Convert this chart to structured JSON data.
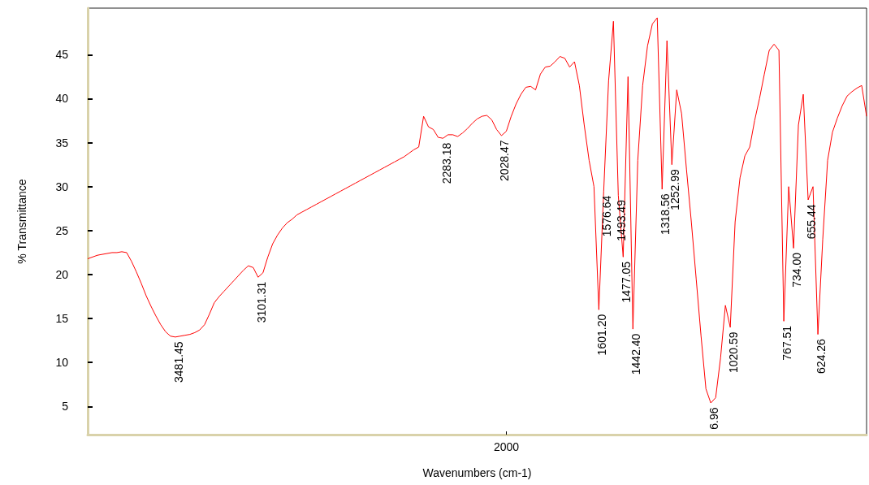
{
  "chart_data": {
    "type": "line",
    "xlabel": "Wavenumbers (cm-1)",
    "ylabel": "% Transmittance",
    "categories": [
      null,
      null,
      null,
      null,
      null,
      null,
      null,
      null,
      null,
      null,
      null,
      null,
      null,
      null,
      null,
      null,
      null,
      null,
      null,
      null,
      null,
      null,
      null,
      null,
      null,
      null,
      null,
      null,
      null,
      null,
      null,
      null,
      null,
      null,
      null,
      null,
      null,
      null,
      null,
      null,
      null,
      null,
      null,
      null,
      null,
      null,
      null,
      null,
      null,
      null,
      null,
      null,
      null,
      null,
      null,
      null,
      null,
      null,
      null,
      null,
      null,
      null,
      null,
      null,
      null,
      null,
      null,
      null,
      null,
      null,
      null,
      null,
      null,
      null,
      null,
      null,
      null,
      null,
      null,
      null,
      null,
      null,
      null,
      null,
      null,
      null,
      "2000",
      null,
      null,
      null,
      null,
      null,
      null,
      null,
      null,
      null,
      null,
      null,
      null,
      null,
      null,
      null,
      null,
      null,
      null,
      null,
      null,
      null,
      null,
      null,
      null,
      null,
      null,
      null,
      null,
      null,
      null,
      null,
      null,
      null,
      null,
      null,
      null,
      null,
      null,
      null,
      null,
      null,
      null,
      null,
      null,
      null,
      null,
      null,
      null,
      null,
      null,
      null,
      null,
      null,
      null,
      null,
      null,
      null,
      null,
      null,
      null,
      null,
      null,
      null,
      null,
      null,
      null,
      null,
      null,
      null,
      null,
      null,
      null,
      null,
      null
    ],
    "ylim": [
      1.8,
      50.3
    ],
    "yticks": [
      5,
      10,
      15,
      20,
      25,
      30,
      35,
      40,
      45
    ],
    "grid": false,
    "marker": "none",
    "line_style": "solid",
    "series": [
      {
        "color": "#ff0000",
        "values": [
          21.8,
          22.0,
          22.2,
          22.3,
          22.4,
          22.5,
          22.5,
          22.6,
          22.5,
          21.5,
          20.3,
          19,
          17.6,
          16.4,
          15.3,
          14.3,
          13.5,
          13.0,
          12.9,
          13.0,
          13.1,
          13.2,
          13.4,
          13.7,
          14.3,
          15.5,
          16.8,
          17.5,
          18.1,
          18.7,
          19.3,
          19.9,
          20.5,
          21.0,
          20.8,
          19.7,
          20.2,
          22,
          23.5,
          24.5,
          25.3,
          25.9,
          26.3,
          26.8,
          27.1,
          27.4,
          27.7,
          28.0,
          28.3,
          28.6,
          28.9,
          29.2,
          29.5,
          29.8,
          30.1,
          30.4,
          30.7,
          31.0,
          31.3,
          31.6,
          31.9,
          32.2,
          32.5,
          32.8,
          33.1,
          33.4,
          33.8,
          34.2,
          34.5,
          38,
          36.8,
          36.5,
          35.6,
          35.5,
          35.9,
          35.9,
          35.7,
          36.1,
          36.6,
          37.2,
          37.7,
          38.0,
          38.1,
          37.6,
          36.5,
          35.8,
          36.3,
          38.0,
          39.4,
          40.5,
          41.3,
          41.4,
          41,
          42.8,
          43.6,
          43.7,
          44.2,
          44.8,
          44.6,
          43.6,
          44.2,
          41.5,
          37,
          33,
          30,
          16,
          29.5,
          42,
          48.8,
          29,
          22,
          42.5,
          13.8,
          33,
          41.5,
          46,
          48.5,
          49.2,
          29.7,
          46.6,
          32.5,
          41,
          38.3,
          32,
          26,
          19.5,
          13,
          7,
          5.4,
          6,
          10.5,
          16.5,
          14,
          26,
          31,
          33.5,
          34.5,
          37.5,
          40,
          42.8,
          45.5,
          46.2,
          45.5,
          14.7,
          30,
          23,
          37,
          40.5,
          28.5,
          30,
          13.2,
          24,
          33,
          36.2,
          37.8,
          39.2,
          40.3,
          40.8,
          41.2,
          41.5,
          38
        ]
      }
    ],
    "annotations": [
      {
        "text": "3481.45",
        "y": 12.9
      },
      {
        "text": "3101.31",
        "y": 19.7
      },
      {
        "text": "2283.18",
        "y": 35.5
      },
      {
        "text": "2028.47",
        "y": 35.8
      },
      {
        "text": "1601.20",
        "y": 16
      },
      {
        "text": "1576.64",
        "y": 29.5
      },
      {
        "text": "1493.49",
        "y": 29
      },
      {
        "text": "1477.05",
        "y": 22
      },
      {
        "text": "1442.40",
        "y": 13.8
      },
      {
        "text": "1318.56",
        "y": 29.7
      },
      {
        "text": "1252.99",
        "y": 32.5
      },
      {
        "text": "6.96",
        "y": 5.4
      },
      {
        "text": "1020.59",
        "y": 14
      },
      {
        "text": "767.51",
        "y": 14.7
      },
      {
        "text": "734.00",
        "y": 23
      },
      {
        "text": "655.44",
        "y": 28.5
      },
      {
        "text": "624.26",
        "y": 13.2
      }
    ]
  }
}
